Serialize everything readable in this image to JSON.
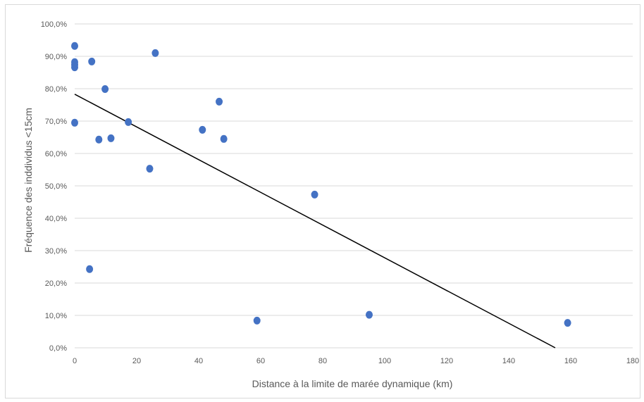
{
  "chart_data": {
    "type": "scatter",
    "title": "",
    "xlabel": "Distance à la limite de marée dynamique (km)",
    "ylabel": "Fréquence des inddividus <15cm",
    "xlim": [
      0,
      180
    ],
    "ylim": [
      0,
      1.0
    ],
    "x_ticks": [
      0,
      20,
      40,
      60,
      80,
      100,
      120,
      140,
      160,
      180
    ],
    "y_ticks": [
      0,
      0.1,
      0.2,
      0.3,
      0.4,
      0.5,
      0.6,
      0.7,
      0.8,
      0.9,
      1.0
    ],
    "x_tick_labels": [
      "0",
      "20",
      "40",
      "60",
      "80",
      "100",
      "120",
      "140",
      "160",
      "180"
    ],
    "y_tick_labels": [
      "0,0%",
      "10,0%",
      "20,0%",
      "30,0%",
      "40,0%",
      "50,0%",
      "60,0%",
      "70,0%",
      "80,0%",
      "90,0%",
      "100,0%"
    ],
    "grid": "horizontal",
    "legend": "none",
    "marker_color": "#4472c4",
    "trendline_color": "#000000",
    "series": [
      {
        "points": [
          [
            0,
            0.932
          ],
          [
            0,
            0.882
          ],
          [
            0,
            0.874
          ],
          [
            0,
            0.866
          ],
          [
            0,
            0.695
          ],
          [
            5.5,
            0.884
          ],
          [
            26,
            0.91
          ],
          [
            9.8,
            0.799
          ],
          [
            17.3,
            0.697
          ],
          [
            7.8,
            0.643
          ],
          [
            11.7,
            0.647
          ],
          [
            24.2,
            0.553
          ],
          [
            4.8,
            0.243
          ],
          [
            41.2,
            0.673
          ],
          [
            46.6,
            0.76
          ],
          [
            48.1,
            0.645
          ],
          [
            77.4,
            0.473
          ],
          [
            58.8,
            0.084
          ],
          [
            95,
            0.102
          ],
          [
            159,
            0.077
          ]
        ]
      }
    ],
    "trendline": {
      "x": [
        0,
        155
      ],
      "y": [
        0.783,
        0
      ]
    }
  }
}
